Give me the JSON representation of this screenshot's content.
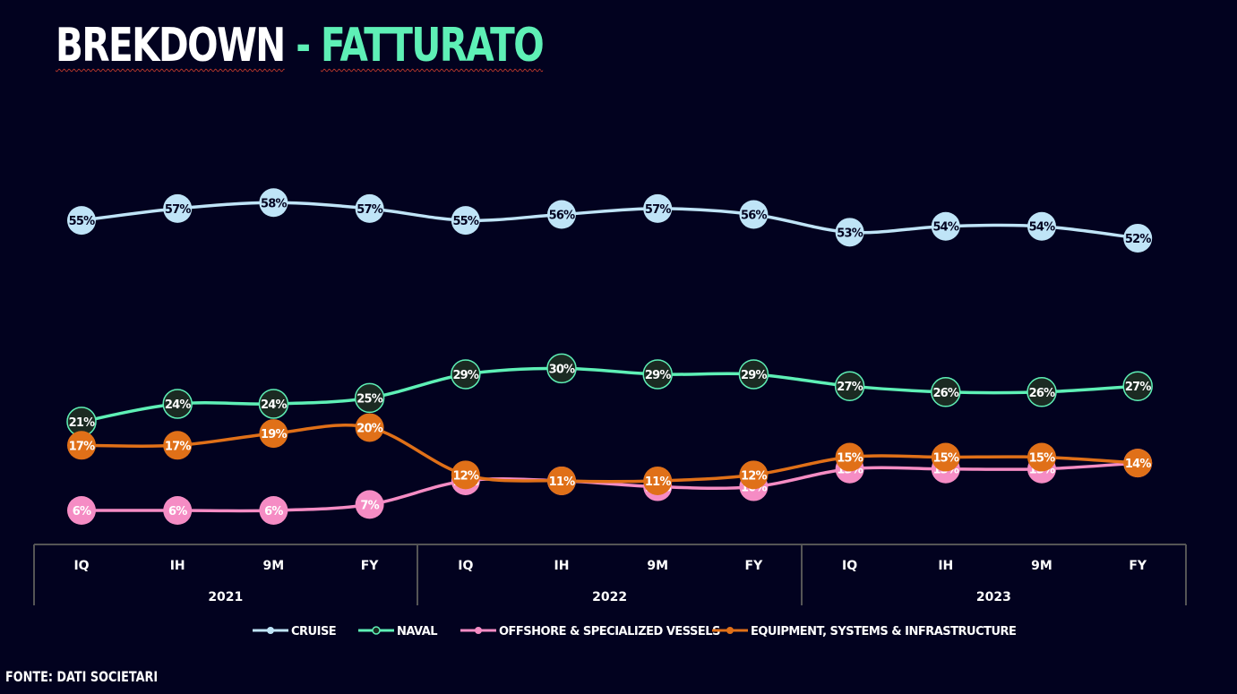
{
  "title": {
    "part1": "BREKDOWN",
    "separator": " - ",
    "part2": "FATTURATO"
  },
  "source": "FONTE: DATI SOCIETARI",
  "chart_data": {
    "type": "line",
    "title": "BREKDOWN - FATTURATO",
    "categories": [
      "IQ",
      "IH",
      "9M",
      "FY",
      "IQ",
      "IH",
      "9M",
      "FY",
      "IQ",
      "IH",
      "9M",
      "FY"
    ],
    "groups": [
      {
        "label": "2021",
        "count": 4
      },
      {
        "label": "2022",
        "count": 4
      },
      {
        "label": "2023",
        "count": 4
      }
    ],
    "series": [
      {
        "name": "CRUISE",
        "color": "#bfe4f7",
        "values": [
          55,
          57,
          58,
          57,
          55,
          56,
          57,
          56,
          53,
          54,
          54,
          52
        ],
        "labels": [
          "55%",
          "57%",
          "58%",
          "57%",
          "55%",
          "56%",
          "57%",
          "56%",
          "53%",
          "54%",
          "54%",
          "52%"
        ]
      },
      {
        "name": "NAVAL",
        "color": "#5ef0b6",
        "values": [
          21,
          24,
          24,
          25,
          29,
          30,
          29,
          29,
          27,
          26,
          26,
          27
        ],
        "labels": [
          "21%",
          "24%",
          "24%",
          "25%",
          "29%",
          "30%",
          "29%",
          "29%",
          "27%",
          "26%",
          "26%",
          "27%"
        ]
      },
      {
        "name": "OFFSHORE & SPECIALIZED VESSELS",
        "color": "#f58cc4",
        "values": [
          6,
          6,
          6,
          7,
          11,
          11,
          10,
          10,
          13,
          13,
          13,
          14
        ],
        "labels": [
          "6%",
          "6%",
          "6%",
          "7%",
          "11%",
          "11%",
          "10%",
          "10%",
          "13%",
          "13%",
          "13%",
          "14%"
        ]
      },
      {
        "name": "EQUIPMENT, SYSTEMS & INFRASTRUCTURE",
        "color": "#e07018",
        "values": [
          17,
          17,
          19,
          20,
          12,
          11,
          11,
          12,
          15,
          15,
          15,
          14
        ],
        "labels": [
          "17%",
          "17%",
          "19%",
          "20%",
          "12%",
          "11%",
          "11%",
          "12%",
          "15%",
          "15%",
          "15%",
          "14%"
        ]
      }
    ],
    "legend_position": "bottom",
    "grid": false
  }
}
